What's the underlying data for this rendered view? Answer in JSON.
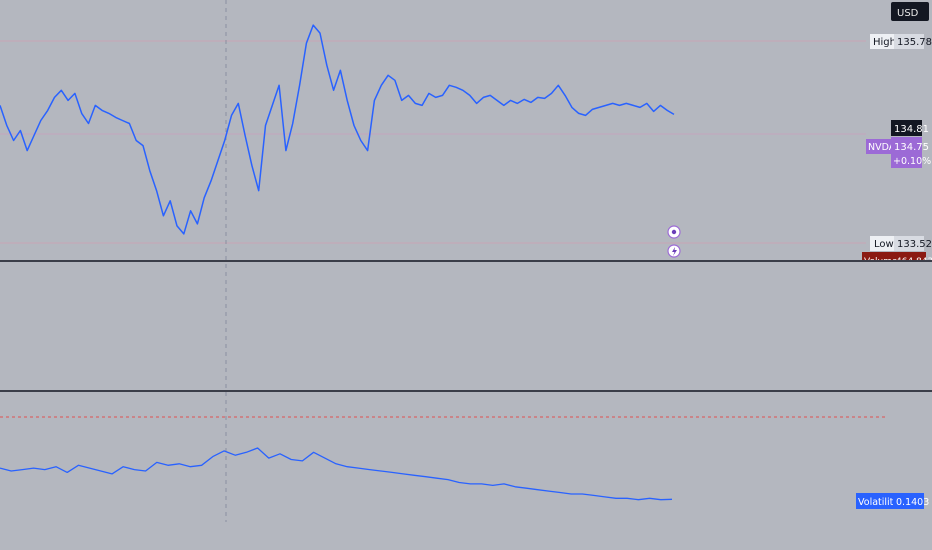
{
  "currency": "USD",
  "symbol": "NVDA",
  "last_price": "134.81",
  "symbol_price": "134.75",
  "change_pct": "+0.10%",
  "high": {
    "label": "High",
    "value": "135.78"
  },
  "low": {
    "label": "Low",
    "value": "133.52"
  },
  "volume": {
    "label": "Volume",
    "value": "464.843K"
  },
  "volatility": {
    "label": "Volatility",
    "value": "0.1403"
  },
  "colors": {
    "background": "#b4b7bf",
    "price_line": "#2962ff",
    "volatility_line": "#2962ff",
    "symbol_badge": "#9c6ad6",
    "last_price_badge": "#131722",
    "volume_badge": "#8b1a12",
    "volatility_badge": "#2962ff",
    "threshold_line": "#e05050",
    "pane_divider": "#131722"
  },
  "icons": [
    "plus-circle-icon",
    "lightning-icon"
  ],
  "chart_data": [
    {
      "type": "line",
      "pane": "price",
      "series": [
        {
          "ticker": "NVDA",
          "values": [
            134.9,
            134.7,
            134.55,
            134.65,
            134.45,
            134.6,
            134.75,
            134.85,
            134.98,
            135.05,
            134.95,
            135.02,
            134.82,
            134.72,
            134.9,
            134.85,
            134.82,
            134.78,
            134.75,
            134.72,
            134.55,
            134.5,
            134.25,
            134.05,
            133.8,
            133.95,
            133.7,
            133.62,
            133.85,
            133.72,
            133.98,
            134.15,
            134.35,
            134.55,
            134.8,
            134.92,
            134.6,
            134.3,
            134.05,
            134.7,
            134.9,
            135.1,
            134.45,
            134.72,
            135.1,
            135.52,
            135.7,
            135.62,
            135.3,
            135.05,
            135.25,
            134.95,
            134.7,
            134.55,
            134.45,
            134.95,
            135.1,
            135.2,
            135.15,
            134.95,
            135.0,
            134.92,
            134.9,
            135.02,
            134.98,
            135.0,
            135.1,
            135.08,
            135.05,
            135.0,
            134.92,
            134.98,
            135.0,
            134.95,
            134.9,
            134.95,
            134.92,
            134.96,
            134.93,
            134.98,
            134.97,
            135.02,
            135.1,
            135.0,
            134.88,
            134.82,
            134.8,
            134.86,
            134.88,
            134.9,
            134.92,
            134.9,
            134.92,
            134.9,
            134.88,
            134.92,
            134.84,
            134.9,
            134.85,
            134.81
          ]
        }
      ],
      "ylim": [
        133.35,
        135.95
      ],
      "markers": {
        "high": 135.78,
        "low": 133.52,
        "last": 134.81
      }
    },
    {
      "type": "line",
      "pane": "volatility",
      "series": [
        {
          "name": "Volatility",
          "values": [
            0.162,
            0.16,
            0.161,
            0.162,
            0.161,
            0.163,
            0.159,
            0.164,
            0.162,
            0.16,
            0.158,
            0.163,
            0.161,
            0.16,
            0.166,
            0.164,
            0.165,
            0.163,
            0.164,
            0.17,
            0.174,
            0.171,
            0.173,
            0.176,
            0.169,
            0.172,
            0.168,
            0.167,
            0.173,
            0.169,
            0.165,
            0.163,
            0.162,
            0.161,
            0.16,
            0.159,
            0.158,
            0.157,
            0.156,
            0.155,
            0.154,
            0.152,
            0.151,
            0.151,
            0.15,
            0.151,
            0.149,
            0.148,
            0.147,
            0.146,
            0.145,
            0.144,
            0.144,
            0.143,
            0.142,
            0.141,
            0.141,
            0.14,
            0.141,
            0.14,
            0.1403
          ]
        }
      ],
      "ylim": [
        0.105,
        0.215
      ],
      "threshold": 0.26
    }
  ]
}
